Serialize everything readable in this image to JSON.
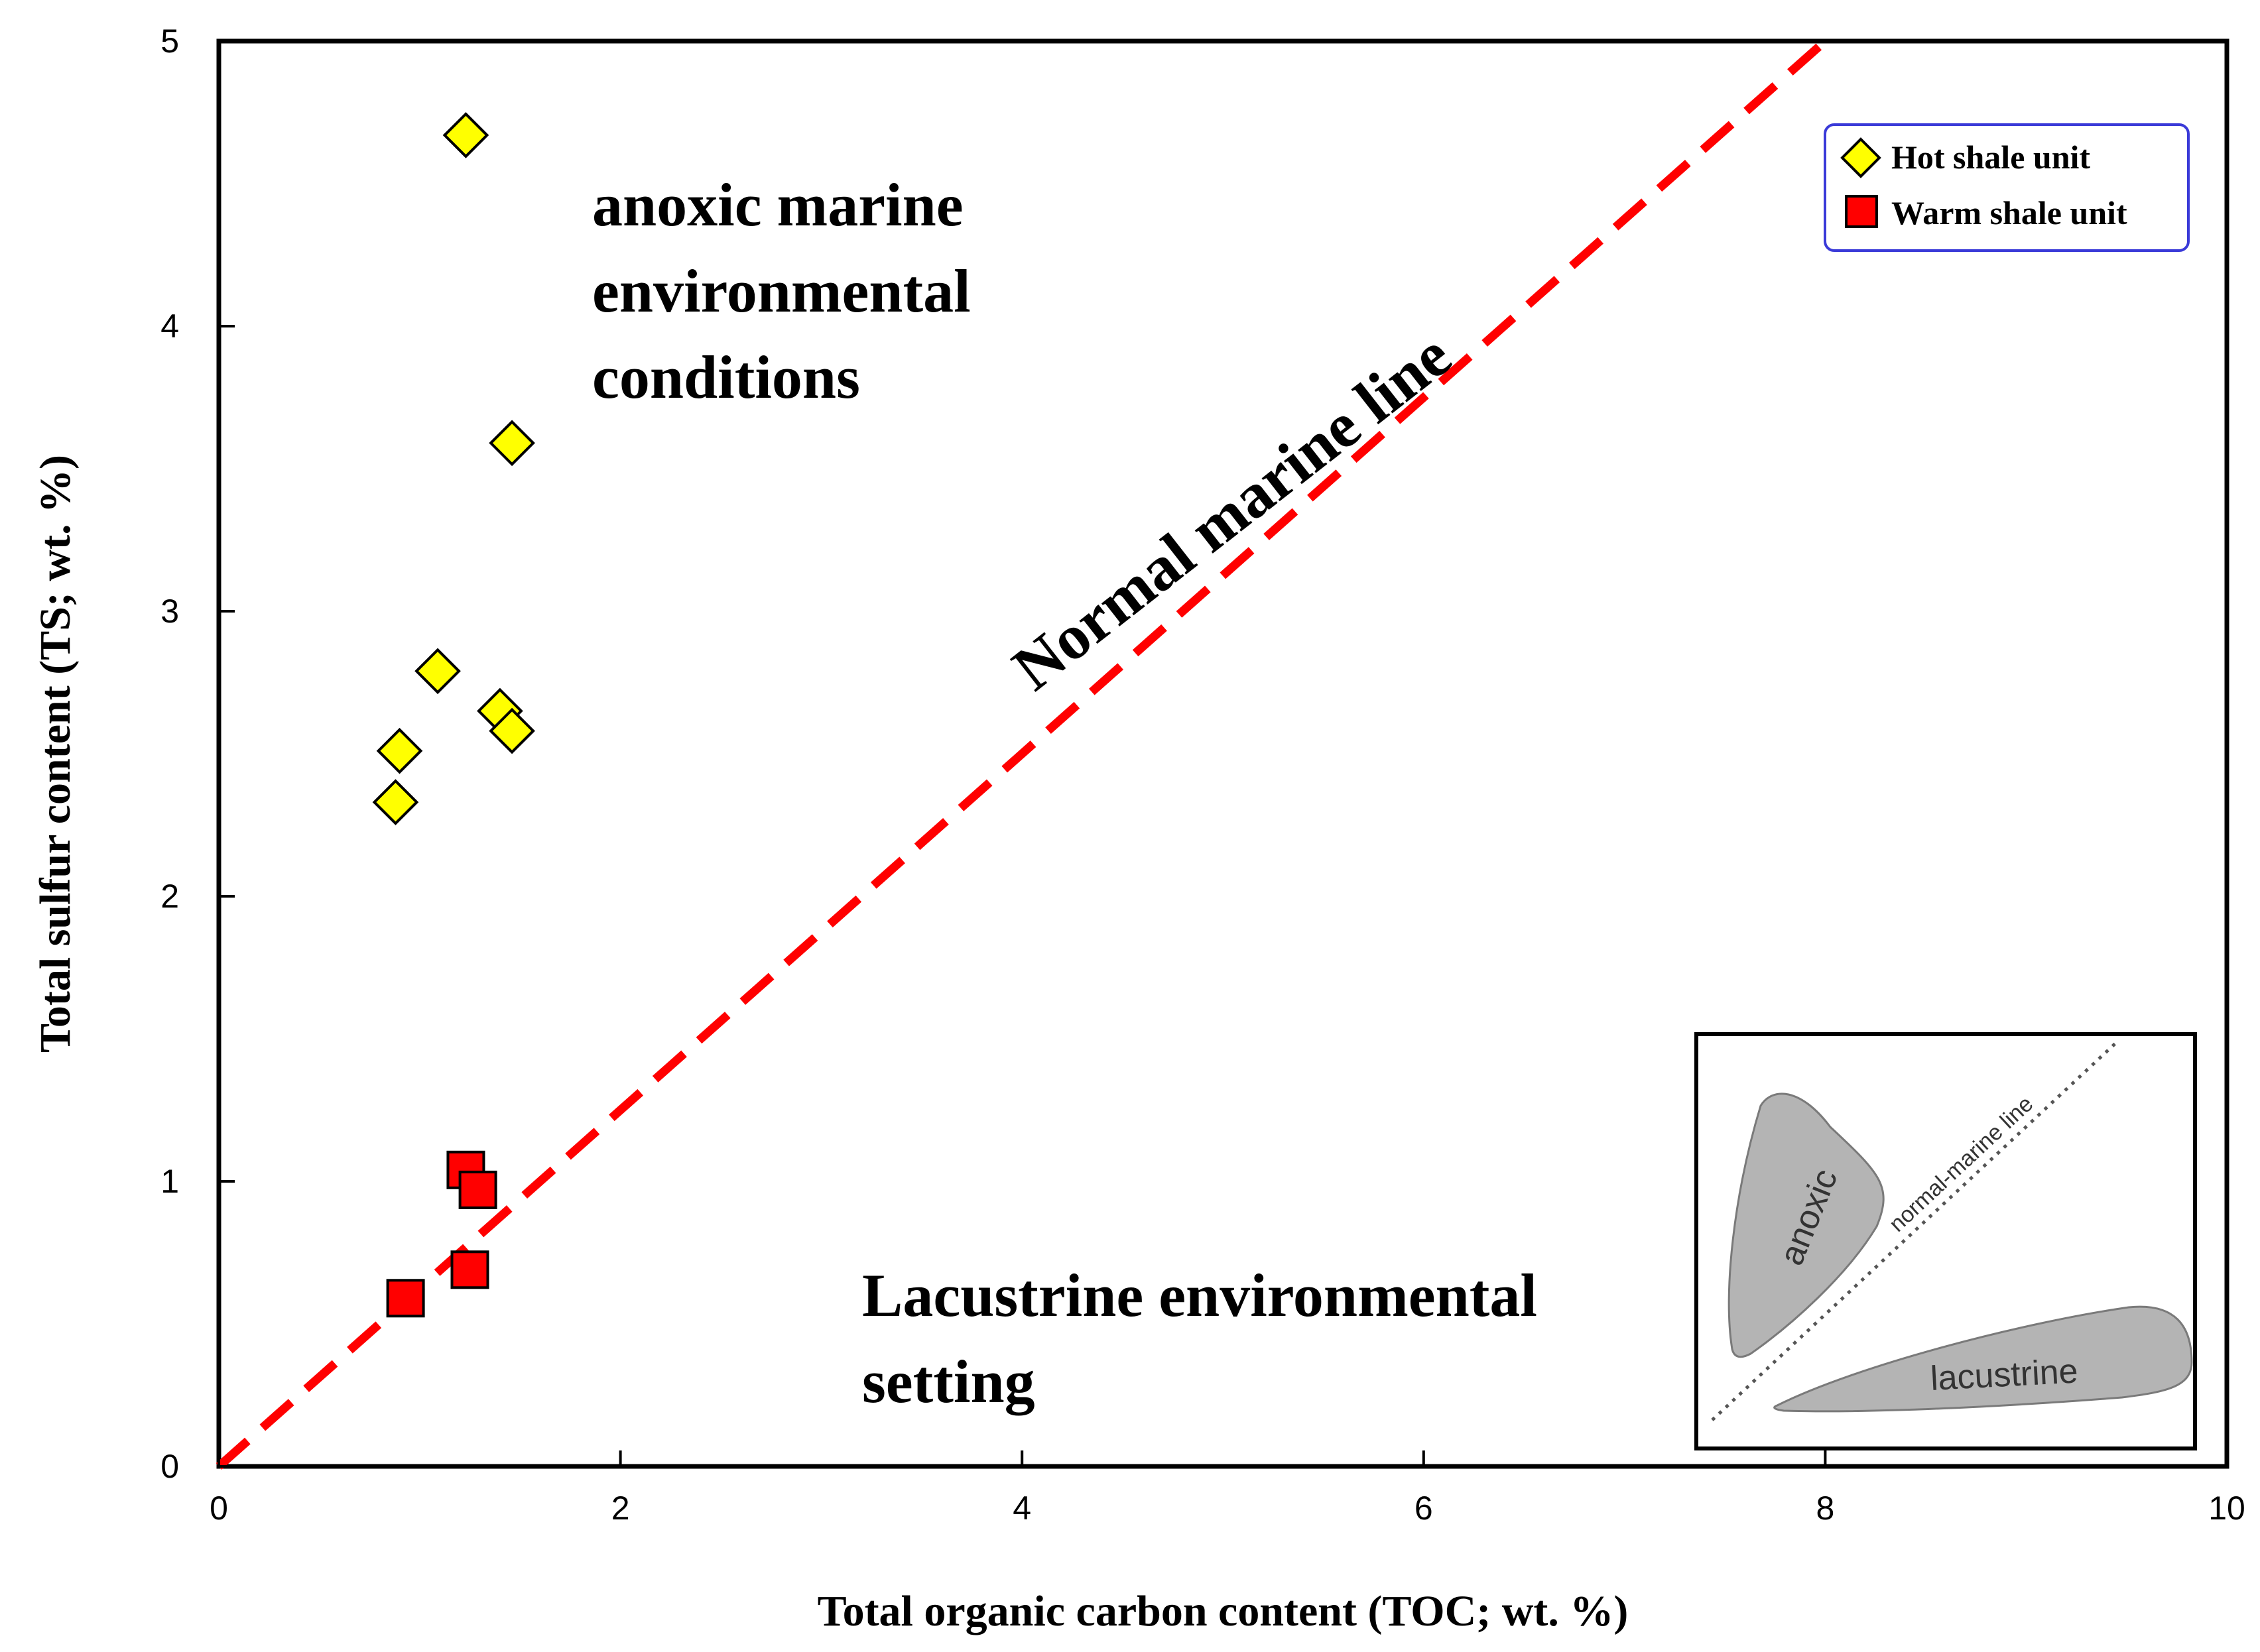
{
  "chart_data": {
    "type": "scatter",
    "title": "",
    "xlabel": "Total organic carbon content (TOC; wt. %)",
    "ylabel": "Total sulfur content (TS; wt. %)",
    "xlim": [
      0,
      10
    ],
    "ylim": [
      0,
      5
    ],
    "x_ticks": [
      "0",
      "2",
      "4",
      "6",
      "8",
      "10"
    ],
    "y_ticks": [
      "0",
      "1",
      "2",
      "3",
      "4",
      "5"
    ],
    "grid": false,
    "legend_position": "top-right",
    "series": [
      {
        "name": "Hot shale unit",
        "marker": "diamond",
        "color": "#ffff00",
        "points": [
          {
            "x": 1.23,
            "y": 4.67
          },
          {
            "x": 1.46,
            "y": 3.59
          },
          {
            "x": 1.09,
            "y": 2.79
          },
          {
            "x": 1.4,
            "y": 2.65
          },
          {
            "x": 1.46,
            "y": 2.58
          },
          {
            "x": 0.9,
            "y": 2.51
          },
          {
            "x": 0.88,
            "y": 2.33
          }
        ]
      },
      {
        "name": "Warm shale unit",
        "marker": "square",
        "color": "#ff0000",
        "points": [
          {
            "x": 1.23,
            "y": 1.04
          },
          {
            "x": 1.29,
            "y": 0.97
          },
          {
            "x": 1.25,
            "y": 0.69
          },
          {
            "x": 0.93,
            "y": 0.59
          }
        ]
      }
    ],
    "reference_line": {
      "name": "Normal marine line",
      "color": "#ff0000",
      "style": "dashed",
      "from": {
        "x": 0,
        "y": 0
      },
      "to": {
        "x": 8.0,
        "y": 5.0
      }
    },
    "annotations": {
      "anoxic": [
        "anoxic marine",
        "environmental",
        "conditions"
      ],
      "lacustrine": [
        "Lacustrine environmental",
        "setting"
      ],
      "normal_marine_line": "Normal marine line"
    },
    "inset": {
      "anoxic_label": "anoxic",
      "lacustrine_label": "lacustrine",
      "line_label": "normal-marine line"
    }
  }
}
